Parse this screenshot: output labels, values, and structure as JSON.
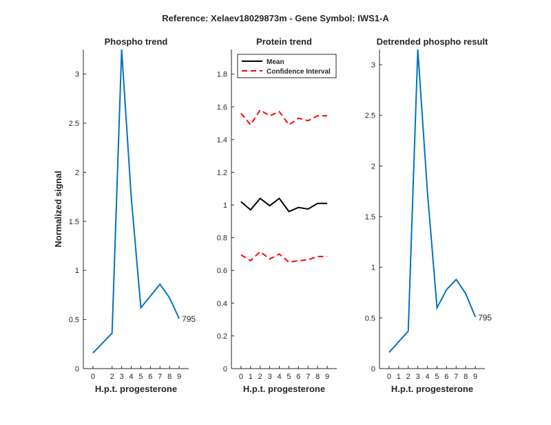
{
  "figure": {
    "suptitle": "Reference:  Xelaev18029873m - Gene Symbol:  IWS1-A"
  },
  "chart_data": [
    {
      "type": "line",
      "title": "Phospho trend",
      "xlabel": "H.p.t. progesterone",
      "ylabel": "Normalized signal",
      "xlim": [
        -1,
        10
      ],
      "ylim": [
        0,
        3.25
      ],
      "xticks": [
        0,
        2,
        3,
        4,
        5,
        6,
        7,
        8,
        9
      ],
      "yticks": [
        0,
        0.5,
        1,
        1.5,
        2,
        2.5,
        3
      ],
      "series": [
        {
          "color": "#0072bd",
          "style": "solid",
          "x": [
            0,
            2,
            3,
            4,
            5,
            6,
            7,
            8,
            9
          ],
          "y": [
            0.16,
            0.36,
            3.25,
            1.75,
            0.62,
            0.74,
            0.86,
            0.72,
            0.51
          ]
        }
      ],
      "annotation": {
        "text": "795",
        "x": 9,
        "y": 0.51
      }
    },
    {
      "type": "line",
      "title": "Protein trend",
      "xlabel": "H.p.t. progesterone",
      "ylabel": "",
      "xlim": [
        -1,
        10
      ],
      "ylim": [
        0,
        1.95
      ],
      "xticks": [
        0,
        1,
        2,
        3,
        4,
        5,
        6,
        7,
        8,
        9
      ],
      "yticks": [
        0,
        0.2,
        0.4,
        0.6,
        0.8,
        1,
        1.2,
        1.4,
        1.6,
        1.8
      ],
      "legend": {
        "placement": "top-left",
        "entries": [
          {
            "label": "Mean",
            "color": "#000000",
            "style": "solid"
          },
          {
            "label": "Confidence Interval",
            "color": "#ff0000",
            "style": "dashed"
          }
        ]
      },
      "series": [
        {
          "name": "Mean",
          "color": "#000000",
          "style": "solid",
          "x": [
            0,
            1,
            2,
            3,
            4,
            5,
            6,
            7,
            8,
            9
          ],
          "y": [
            1.02,
            0.97,
            1.04,
            0.995,
            1.04,
            0.96,
            0.985,
            0.975,
            1.01,
            1.01
          ]
        },
        {
          "name": "Confidence Interval",
          "color": "#ff0000",
          "style": "dashed",
          "x": [
            0,
            1,
            2,
            3,
            4,
            5,
            6,
            7,
            8,
            9
          ],
          "y": [
            1.56,
            1.49,
            1.58,
            1.545,
            1.57,
            1.49,
            1.53,
            1.515,
            1.545,
            1.545
          ]
        },
        {
          "name": "Confidence Interval",
          "color": "#ff0000",
          "style": "dashed",
          "x": [
            0,
            1,
            2,
            3,
            4,
            5,
            6,
            7,
            8,
            9
          ],
          "y": [
            0.695,
            0.66,
            0.715,
            0.67,
            0.7,
            0.65,
            0.66,
            0.665,
            0.685,
            0.685
          ]
        }
      ]
    },
    {
      "type": "line",
      "title": "Detrended phospho result",
      "xlabel": "H.p.t. progesterone",
      "ylabel": "",
      "xlim": [
        -1,
        10
      ],
      "ylim": [
        0,
        3.15
      ],
      "xticks": [
        0,
        1,
        2,
        3,
        4,
        5,
        6,
        7,
        8,
        9
      ],
      "yticks": [
        0,
        0.5,
        1,
        1.5,
        2,
        2.5,
        3
      ],
      "series": [
        {
          "color": "#0072bd",
          "style": "solid",
          "x": [
            0,
            2,
            3,
            4,
            5,
            6,
            7,
            8,
            9
          ],
          "y": [
            0.16,
            0.37,
            3.15,
            1.75,
            0.6,
            0.78,
            0.88,
            0.74,
            0.51
          ]
        }
      ],
      "annotation": {
        "text": "795",
        "x": 9,
        "y": 0.51
      }
    }
  ]
}
